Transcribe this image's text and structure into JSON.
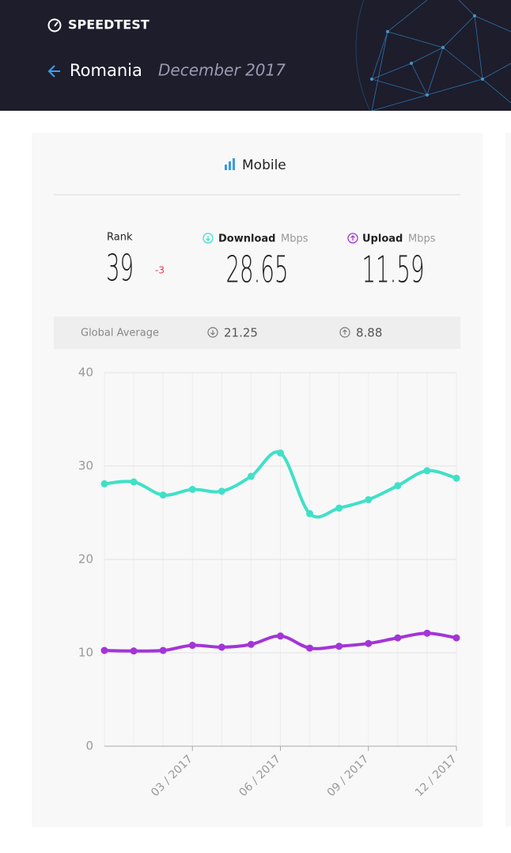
{
  "header": {
    "logo": "SPEEDTEST",
    "country": "Romania",
    "period": "December 2017"
  },
  "card": {
    "title": "Mobile",
    "rank_label": "Rank",
    "rank": 39,
    "rank_change": -3,
    "download_label": "Download",
    "upload_label": "Upload",
    "unit": "Mbps",
    "download": 28.65,
    "upload": 11.59,
    "global_label": "Global Average",
    "global_download": 21.25,
    "global_upload": 8.88
  },
  "chart_data": {
    "type": "line",
    "categories": [
      null,
      null,
      null,
      "03 / 2017",
      null,
      null,
      "06 / 2017",
      null,
      null,
      "09 / 2017",
      null,
      null,
      "12 / 2017"
    ],
    "series": [
      {
        "color": "#40e0c8",
        "values": [
          28.1,
          28.3,
          26.9,
          27.5,
          27.3,
          28.9,
          31.4,
          24.9,
          25.5,
          26.4,
          27.9,
          29.5,
          28.7
        ]
      },
      {
        "color": "#a335d8",
        "values": [
          10.25,
          10.2,
          10.25,
          10.8,
          10.6,
          10.9,
          11.8,
          10.5,
          10.7,
          11.0,
          11.6,
          12.1,
          11.6
        ]
      }
    ],
    "ylim": [
      0,
      40
    ],
    "yticks": [
      0,
      10,
      20,
      30,
      40
    ],
    "grid": true
  }
}
